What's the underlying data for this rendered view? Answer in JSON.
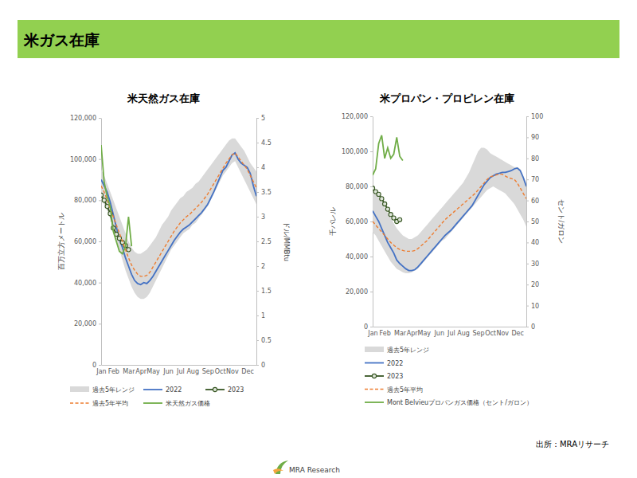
{
  "slide": {
    "title": "米ガス在庫",
    "source": "出所：MRAリサーチ",
    "logo": "MRA Research"
  },
  "chart_data": [
    {
      "type": "line",
      "title": "米天然ガス在庫",
      "y_label": "百万立方メートル",
      "y2_label": "ドル/MMBtu",
      "categories": [
        "Jan",
        null,
        null,
        null,
        "Feb",
        null,
        null,
        null,
        null,
        "Mar",
        null,
        null,
        null,
        "Apr",
        null,
        null,
        null,
        "May",
        null,
        null,
        null,
        null,
        "Jun",
        null,
        null,
        null,
        "Jul",
        null,
        null,
        null,
        "Aug",
        null,
        null,
        null,
        null,
        "Sep",
        null,
        null,
        null,
        "Oct",
        null,
        null,
        null,
        "Nov",
        null,
        null,
        null,
        null,
        "Dec",
        null,
        null,
        null
      ],
      "ylim": [
        0,
        120000
      ],
      "yticks": [
        0,
        {
          "value": 20000,
          "label": "20,000"
        },
        {
          "value": 40000,
          "label": "40,000"
        },
        {
          "value": 60000,
          "label": "60,000"
        },
        {
          "value": 80000,
          "label": "80,000"
        },
        {
          "value": 100000,
          "label": "100,000"
        },
        {
          "value": 120000,
          "label": "120,000"
        }
      ],
      "y2lim": [
        0,
        5
      ],
      "y2ticks": [
        0,
        0.5,
        1,
        1.5,
        2,
        2.5,
        3,
        3.5,
        4,
        4.5,
        5
      ],
      "legend": "bottom",
      "series": [
        {
          "name": "過去5年レンジ",
          "type": "range",
          "color": "#d9d9d9",
          "low": [
            80000,
            78000,
            75000,
            71000,
            66000,
            61000,
            56000,
            51000,
            46000,
            42000,
            38000,
            35000,
            33000,
            32000,
            32000,
            33000,
            35000,
            38000,
            41000,
            44000,
            47000,
            50000,
            53000,
            56000,
            58000,
            60000,
            62000,
            64000,
            65000,
            66000,
            68000,
            69000,
            71000,
            73000,
            75000,
            77000,
            80000,
            83000,
            86000,
            89000,
            92000,
            94000,
            96000,
            98000,
            99000,
            96000,
            93000,
            90000,
            87000,
            84000,
            81000,
            78000
          ],
          "high": [
            95000,
            92000,
            88000,
            84000,
            80000,
            76000,
            72000,
            68000,
            64000,
            60000,
            57000,
            55000,
            54000,
            54000,
            55000,
            56000,
            58000,
            60000,
            62000,
            65000,
            68000,
            70000,
            72000,
            75000,
            77000,
            79000,
            81000,
            82000,
            84000,
            85000,
            86000,
            88000,
            89000,
            91000,
            93000,
            95000,
            97000,
            99000,
            101000,
            103000,
            105000,
            107000,
            109000,
            110000,
            110000,
            108000,
            106000,
            104000,
            101000,
            98000,
            96000,
            94000
          ]
        },
        {
          "name": "2022",
          "type": "line",
          "color": "#4472c4",
          "values": [
            90000,
            87000,
            84000,
            79000,
            73000,
            67000,
            61000,
            57000,
            52000,
            48000,
            44000,
            41000,
            39500,
            39000,
            40000,
            39500,
            41000,
            43000,
            45500,
            48000,
            50500,
            53000,
            55500,
            58000,
            60500,
            62500,
            64500,
            66000,
            67000,
            68000,
            69500,
            71000,
            72500,
            74000,
            76000,
            78000,
            81000,
            84000,
            87500,
            91000,
            94500,
            96000,
            99000,
            102000,
            103000,
            100000,
            98000,
            97000,
            96000,
            93000,
            87000,
            82000
          ]
        },
        {
          "name": "2023",
          "type": "line",
          "color": "#375623",
          "marker": "circle",
          "values": [
            82500,
            80000,
            77000,
            73500,
            66500,
            63500,
            61500,
            59500,
            58000,
            56000,
            null,
            null,
            null,
            null,
            null,
            null,
            null,
            null,
            null,
            null,
            null,
            null,
            null,
            null,
            null,
            null,
            null,
            null,
            null,
            null,
            null,
            null,
            null,
            null,
            null,
            null,
            null,
            null,
            null,
            null,
            null,
            null,
            null,
            null,
            null,
            null,
            null,
            null,
            null,
            null,
            null,
            null
          ]
        },
        {
          "name": "過去5年平均",
          "type": "line",
          "color": "#ed7d31",
          "line_style": "dashed",
          "values": [
            87000,
            84000,
            80000,
            76000,
            72000,
            68000,
            64000,
            60000,
            56000,
            52000,
            48500,
            46000,
            44000,
            43000,
            43000,
            43500,
            45000,
            47500,
            50000,
            52500,
            55000,
            57500,
            60000,
            62500,
            65000,
            67000,
            69000,
            70500,
            72000,
            73000,
            74500,
            76000,
            77500,
            79000,
            81000,
            83000,
            85500,
            88000,
            90500,
            93000,
            95500,
            98000,
            100000,
            102000,
            103000,
            101000,
            99000,
            97000,
            95000,
            92000,
            89000,
            86000
          ]
        },
        {
          "name": "米天然ガス価格",
          "type": "line",
          "color": "#70ad47",
          "axis": "y2",
          "values": [
            4.45,
            3.7,
            3.4,
            3.2,
            2.7,
            2.5,
            2.3,
            2.25,
            2.4,
            3,
            2.4,
            null,
            null,
            null,
            null,
            null,
            null,
            null,
            null,
            null,
            null,
            null,
            null,
            null,
            null,
            null,
            null,
            null,
            null,
            null,
            null,
            null,
            null,
            null,
            null,
            null,
            null,
            null,
            null,
            null,
            null,
            null,
            null,
            null,
            null,
            null,
            null,
            null,
            null,
            null,
            null,
            null
          ]
        }
      ]
    },
    {
      "type": "line",
      "title": "米プロパン・プロピレン在庫",
      "y_label": "千バレル",
      "y2_label": "セント/ガロン",
      "categories": [
        "Jan",
        null,
        null,
        null,
        "Feb",
        null,
        null,
        null,
        null,
        "Mar",
        null,
        null,
        null,
        "Apr",
        null,
        null,
        null,
        "May",
        null,
        null,
        null,
        null,
        "Jun",
        null,
        null,
        null,
        "Jul",
        null,
        null,
        null,
        "Aug",
        null,
        null,
        null,
        null,
        "Sep",
        null,
        null,
        null,
        "Oct",
        null,
        null,
        null,
        "Nov",
        null,
        null,
        null,
        null,
        "Dec",
        null,
        null,
        null
      ],
      "ylim": [
        0,
        120000
      ],
      "yticks": [
        0,
        {
          "value": 20000,
          "label": "20,000"
        },
        {
          "value": 40000,
          "label": "40,000"
        },
        {
          "value": 60000,
          "label": "60,000"
        },
        {
          "value": 80000,
          "label": "80,000"
        },
        {
          "value": 100000,
          "label": "100,000"
        },
        {
          "value": 120000,
          "label": "120,000"
        }
      ],
      "y2lim": [
        0,
        100
      ],
      "y2ticks": [
        0,
        10,
        20,
        30,
        40,
        50,
        60,
        70,
        80,
        90,
        100
      ],
      "legend": "bottom",
      "series": [
        {
          "name": "過去5年レンジ",
          "type": "range",
          "color": "#d9d9d9",
          "low": [
            54000,
            52000,
            49000,
            46000,
            43000,
            40000,
            37000,
            35000,
            33000,
            32000,
            31000,
            30500,
            30500,
            31000,
            32000,
            33000,
            35000,
            37000,
            39000,
            41000,
            43000,
            45000,
            47000,
            49000,
            50000,
            52000,
            54000,
            56000,
            58000,
            60000,
            62000,
            64000,
            66000,
            68000,
            70000,
            72000,
            74000,
            76000,
            78000,
            79000,
            80000,
            79000,
            78000,
            77000,
            76000,
            74000,
            72000,
            70000,
            67000,
            64000,
            61000,
            57000
          ],
          "high": [
            80000,
            77000,
            74000,
            71000,
            68000,
            65000,
            62000,
            59000,
            56000,
            54000,
            52000,
            51000,
            50000,
            50000,
            51000,
            52000,
            54000,
            56000,
            58000,
            60000,
            62000,
            64000,
            66000,
            68000,
            70000,
            72000,
            74000,
            76000,
            78000,
            80000,
            82000,
            85000,
            88000,
            92000,
            96000,
            100000,
            102000,
            102000,
            101000,
            99000,
            98000,
            97000,
            96000,
            95000,
            94000,
            93000,
            92000,
            91000,
            91000,
            90000,
            86000,
            82000
          ]
        },
        {
          "name": "2022",
          "type": "line",
          "color": "#4472c4",
          "values": [
            66000,
            63000,
            60000,
            56000,
            52000,
            48000,
            45000,
            42000,
            38000,
            36000,
            34500,
            33000,
            32000,
            32000,
            32500,
            34000,
            36000,
            38000,
            40000,
            42000,
            44000,
            46000,
            48000,
            50000,
            52000,
            53500,
            55000,
            57000,
            59000,
            61000,
            63000,
            65000,
            67000,
            69000,
            72000,
            75000,
            78000,
            81000,
            83000,
            85000,
            86000,
            87000,
            87500,
            88000,
            88000,
            88500,
            89000,
            90000,
            90500,
            89000,
            85000,
            80000
          ]
        },
        {
          "name": "2023",
          "type": "line",
          "color": "#375623",
          "marker": "circle",
          "values": [
            79000,
            77000,
            75500,
            73000,
            70000,
            67000,
            64000,
            62000,
            60000,
            61000,
            null,
            null,
            null,
            null,
            null,
            null,
            null,
            null,
            null,
            null,
            null,
            null,
            null,
            null,
            null,
            null,
            null,
            null,
            null,
            null,
            null,
            null,
            null,
            null,
            null,
            null,
            null,
            null,
            null,
            null,
            null,
            null,
            null,
            null,
            null,
            null,
            null,
            null,
            null,
            null,
            null,
            null
          ]
        },
        {
          "name": "過去5年平均",
          "type": "line",
          "color": "#ed7d31",
          "line_style": "dashed",
          "values": [
            60000,
            58000,
            56000,
            54000,
            52000,
            50000,
            48000,
            46500,
            45000,
            44000,
            43500,
            43000,
            43000,
            43000,
            43500,
            44500,
            46000,
            47500,
            49000,
            51000,
            53000,
            55000,
            57000,
            59000,
            61000,
            62500,
            64000,
            65500,
            67000,
            68500,
            70000,
            71500,
            73000,
            74500,
            76000,
            78000,
            80000,
            82000,
            84000,
            85500,
            86000,
            86500,
            87000,
            87000,
            86000,
            85000,
            84500,
            84000,
            82000,
            79000,
            76000,
            73000
          ]
        },
        {
          "name": "Mont Belvieuプロパンガス価格（セント/ガロン）",
          "type": "line",
          "color": "#70ad47",
          "axis": "y2",
          "values": [
            72,
            75,
            87,
            91,
            80,
            85,
            80,
            82,
            90,
            81,
            79,
            null,
            null,
            null,
            null,
            null,
            null,
            null,
            null,
            null,
            null,
            null,
            null,
            null,
            null,
            null,
            null,
            null,
            null,
            null,
            null,
            null,
            null,
            null,
            null,
            null,
            null,
            null,
            null,
            null,
            null,
            null,
            null,
            null,
            null,
            null,
            null,
            null,
            null,
            null,
            null,
            null
          ]
        }
      ]
    }
  ]
}
